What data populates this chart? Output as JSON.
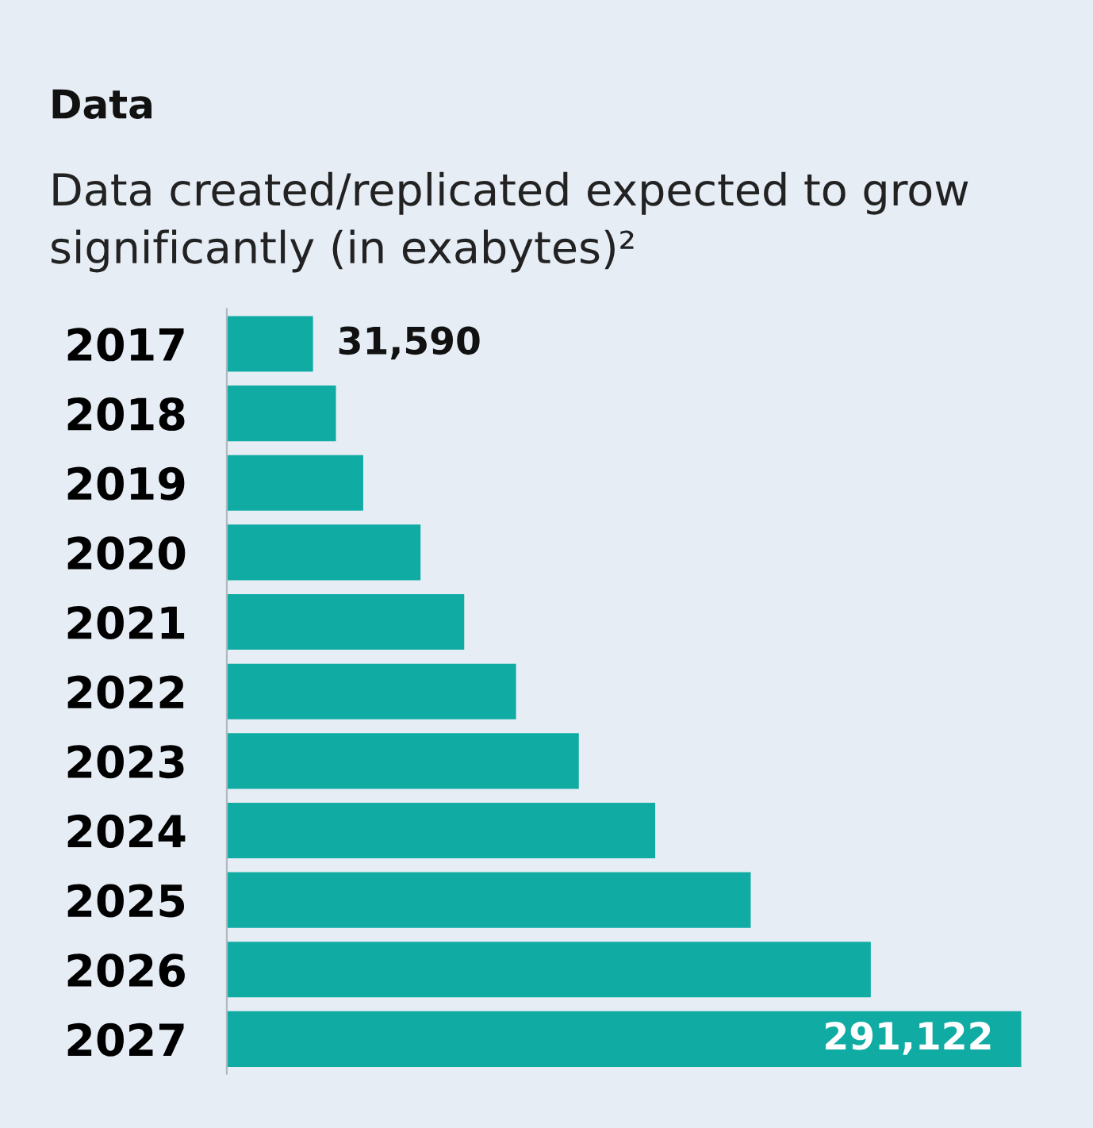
{
  "chart_data": {
    "type": "bar",
    "orientation": "horizontal",
    "title": "Data",
    "subtitle": "Data created/replicated expected to grow significantly (in exabytes)²",
    "categories": [
      "2017",
      "2018",
      "2019",
      "2020",
      "2021",
      "2022",
      "2023",
      "2024",
      "2025",
      "2026",
      "2027"
    ],
    "values": [
      31590,
      40000,
      50000,
      71000,
      87000,
      106000,
      129000,
      157000,
      192000,
      236000,
      291122
    ],
    "value_labels": [
      "31,590",
      null,
      null,
      null,
      null,
      null,
      null,
      null,
      null,
      null,
      "291,122"
    ],
    "color": "#10aca3"
  }
}
